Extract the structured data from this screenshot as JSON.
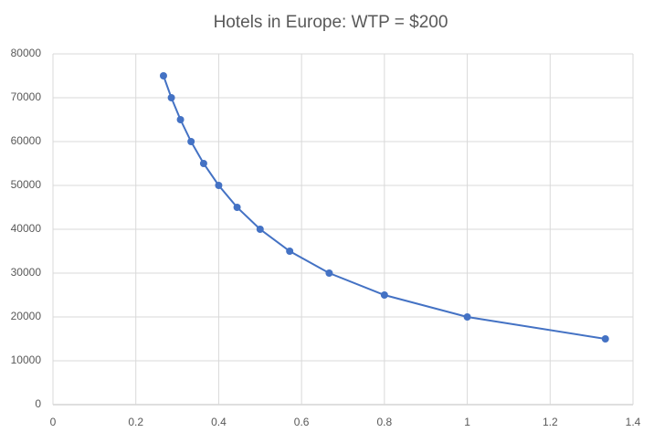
{
  "chart_data": {
    "type": "line",
    "title": "Hotels in Europe: WTP = $200",
    "x": [
      0.2667,
      0.2857,
      0.3077,
      0.3333,
      0.3636,
      0.4,
      0.4444,
      0.5,
      0.5714,
      0.6667,
      0.8,
      1,
      1.3333
    ],
    "series": [
      {
        "color": "#4472c4",
        "values": [
          75000,
          70000,
          65000,
          60000,
          55000,
          50000,
          45000,
          40000,
          35000,
          30000,
          25000,
          20000,
          15000
        ]
      }
    ],
    "xlim": [
      0,
      1.4
    ],
    "xticks": [
      0,
      0.2,
      0.4,
      0.6,
      0.8,
      1,
      1.2,
      1.4
    ],
    "ylim": [
      0,
      80000
    ],
    "yticks": [
      0,
      10000,
      20000,
      30000,
      40000,
      50000,
      60000,
      70000,
      80000
    ],
    "grid": true,
    "markers": true
  }
}
